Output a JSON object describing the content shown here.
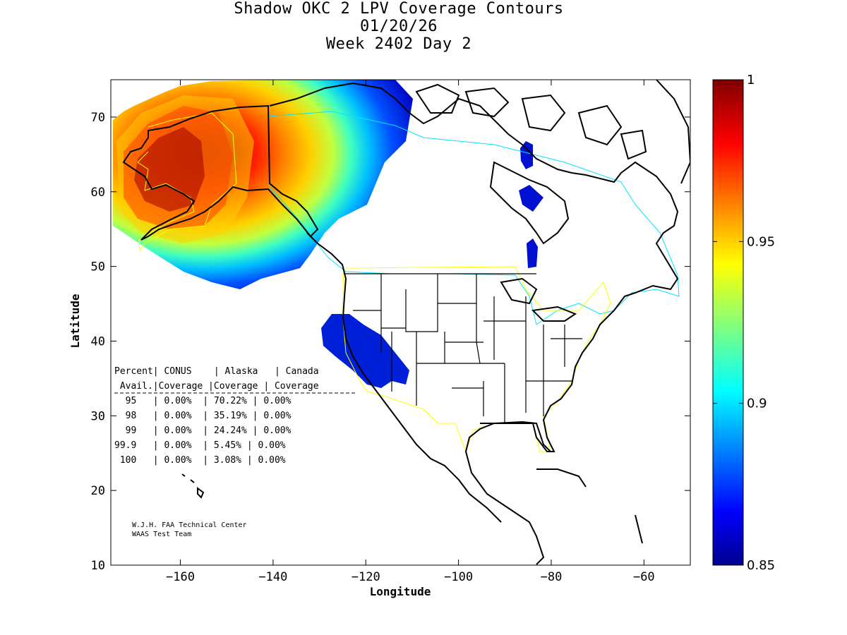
{
  "title": {
    "line1": "Shadow OKC 2 LPV Coverage Contours",
    "line2": "01/20/26",
    "line3": "Week 2402 Day 2"
  },
  "axes": {
    "xlabel": "Longitude",
    "ylabel": "Latitude",
    "xticks": [
      "-160",
      "-140",
      "-120",
      "-100",
      "-80",
      "-60"
    ],
    "yticks": [
      "70",
      "60",
      "50",
      "40",
      "30",
      "20",
      "10"
    ],
    "xlim": [
      -175,
      -50
    ],
    "ylim": [
      10,
      75
    ]
  },
  "colorbar": {
    "labels": [
      "1",
      "0.95",
      "0.9",
      "0.85"
    ],
    "range": [
      0.85,
      1.0
    ]
  },
  "table": {
    "header1": "Percent| CONUS    | Alaska   | Canada",
    "header2": " Avail.|Coverage |Coverage | Coverage",
    "rows": [
      "  95   | 0.00%  | 70.22% | 0.00%",
      "  98   | 0.00%  | 35.19% | 0.00%",
      "  99   | 0.00%  | 24.24% | 0.00%",
      "99.9   | 0.00%  | 5.45% | 0.00%",
      " 100   | 0.00%  | 3.08% | 0.00%"
    ]
  },
  "credit": {
    "line1": "W.J.H. FAA Technical Center",
    "line2": "WAAS Test Team"
  },
  "colors": {
    "background": "#ffffff",
    "alaska_boundary": "#ffff00",
    "canada_boundary": "#00e5ff",
    "conus_boundary": "#ffff00",
    "coastline": "#000000"
  }
}
